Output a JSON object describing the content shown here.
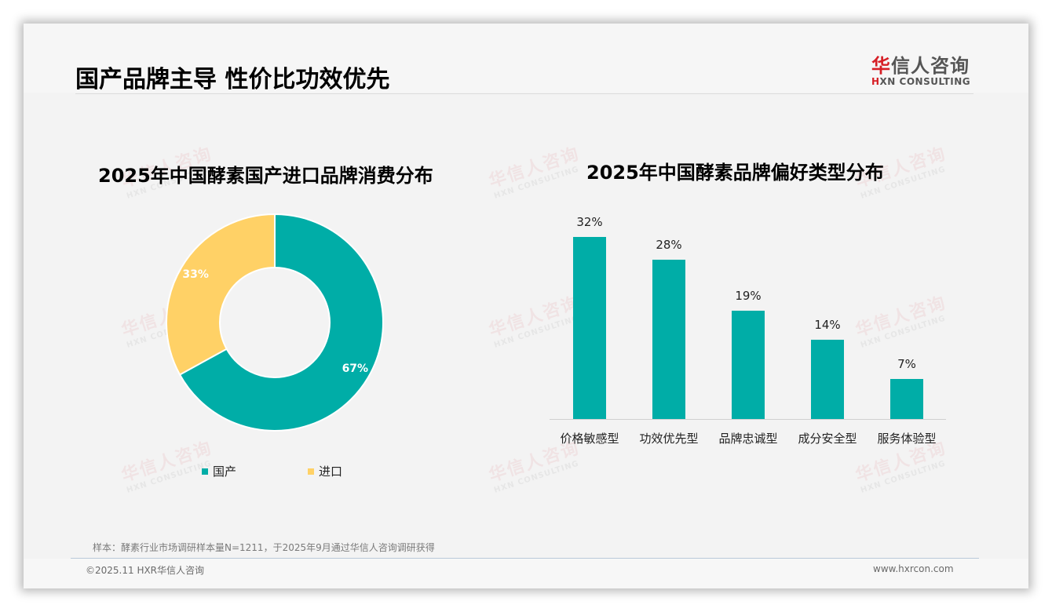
{
  "header": {
    "title": "国产品牌主导 性价比功效优先",
    "logo": {
      "cn_red": "华",
      "cn_rest": "信人咨询",
      "en_red": "H",
      "en_rest": "XN CONSULTING"
    }
  },
  "watermark": {
    "cn": "华信人咨询",
    "en": "HXN CONSULTING"
  },
  "colors": {
    "teal": "#00ada7",
    "yellow": "#ffd166",
    "brand_red": "#d61f26"
  },
  "chart_data": [
    {
      "type": "pie",
      "subtype": "donut",
      "title": "2025年中国酵素国产进口品牌消费分布",
      "categories": [
        "国产",
        "进口"
      ],
      "values": [
        67,
        33
      ],
      "labels": [
        "67%",
        "33%"
      ],
      "colors": [
        "#00ada7",
        "#ffd166"
      ],
      "legend_position": "bottom"
    },
    {
      "type": "bar",
      "title": "2025年中国酵素品牌偏好类型分布",
      "categories": [
        "价格敏感型",
        "功效优先型",
        "品牌忠诚型",
        "成分安全型",
        "服务体验型"
      ],
      "values": [
        32,
        28,
        19,
        14,
        7
      ],
      "labels": [
        "32%",
        "28%",
        "19%",
        "14%",
        "7%"
      ],
      "xlabel": "",
      "ylabel": "",
      "ylim": [
        0,
        35
      ],
      "grid": false,
      "color": "#00ada7"
    }
  ],
  "footer": {
    "note": "样本：酵素行业市场调研样本量N=1211，于2025年9月通过华信人咨询调研获得",
    "copyright": "©2025.11 HXR华信人咨询",
    "website": "www.hxrcon.com"
  }
}
